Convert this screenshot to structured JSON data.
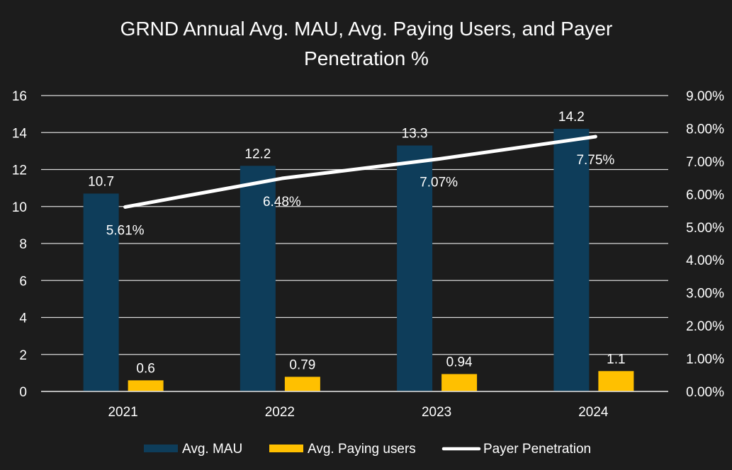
{
  "chart_data": {
    "type": "bar",
    "title_line1": "GRND Annual Avg. MAU, Avg. Paying Users, and Payer",
    "title_line2": "Penetration %",
    "categories": [
      "2021",
      "2022",
      "2023",
      "2024"
    ],
    "series": [
      {
        "name": "Avg. MAU",
        "type": "bar",
        "axis": "left",
        "color": "#0e3d5a",
        "values": [
          10.7,
          12.2,
          13.3,
          14.2
        ],
        "labels": [
          "10.7",
          "12.2",
          "13.3",
          "14.2"
        ]
      },
      {
        "name": "Avg. Paying users",
        "type": "bar",
        "axis": "left",
        "color": "#ffc000",
        "values": [
          0.6,
          0.79,
          0.94,
          1.1
        ],
        "labels": [
          "0.6",
          "0.79",
          "0.94",
          "1.1"
        ]
      },
      {
        "name": "Payer Penetration",
        "type": "line",
        "axis": "right",
        "color": "#ffffff",
        "values": [
          5.61,
          6.48,
          7.07,
          7.75
        ],
        "labels": [
          "5.61%",
          "6.48%",
          "7.07%",
          "7.75%"
        ]
      }
    ],
    "y_left": {
      "min": 0,
      "max": 16,
      "ticks": [
        "0",
        "2",
        "4",
        "6",
        "8",
        "10",
        "12",
        "14",
        "16"
      ]
    },
    "y_right": {
      "min": 0,
      "max": 9,
      "ticks": [
        "0.00%",
        "1.00%",
        "2.00%",
        "3.00%",
        "4.00%",
        "5.00%",
        "6.00%",
        "7.00%",
        "8.00%",
        "9.00%"
      ]
    },
    "grid": true,
    "legend_position": "bottom",
    "background": "#1c1c1c",
    "gridline_color": "#d9d9d9"
  }
}
